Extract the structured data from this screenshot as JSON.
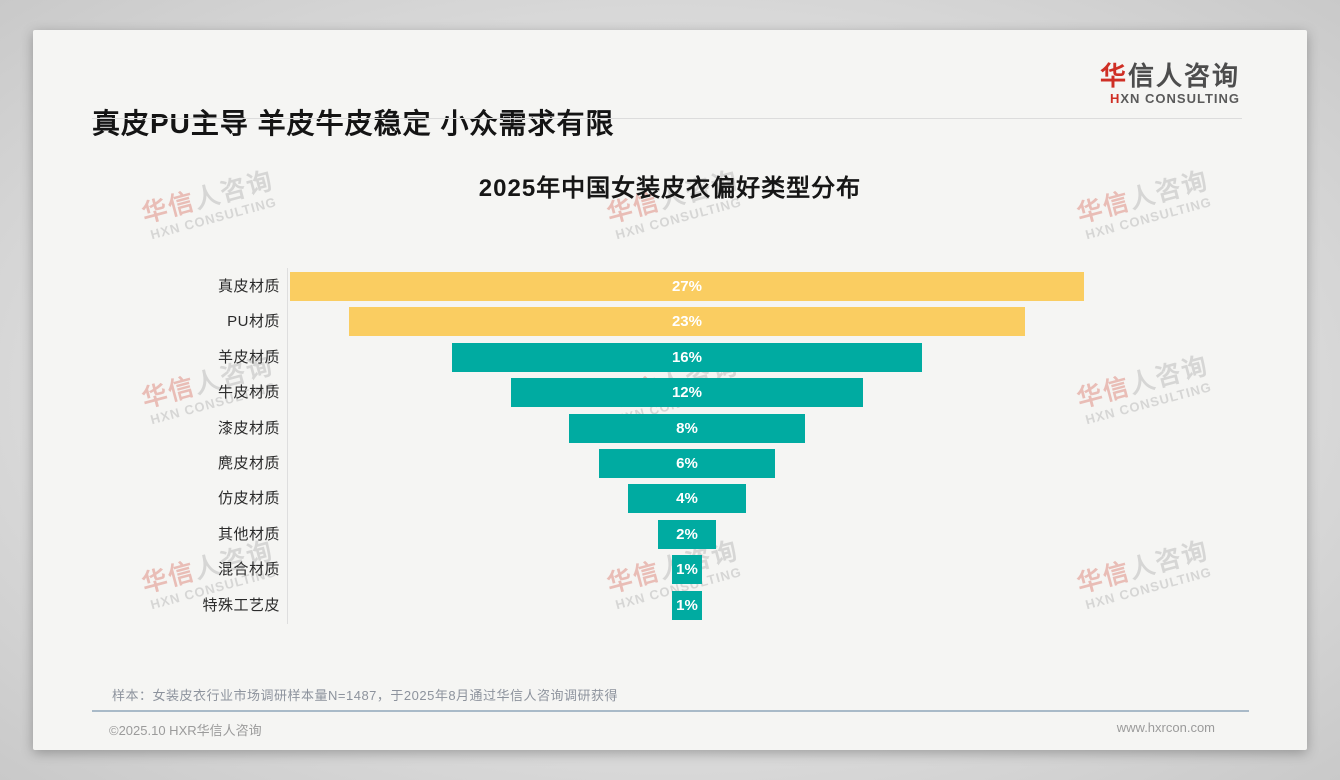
{
  "page": {
    "header": {
      "title": "真皮PU主导 羊皮牛皮稳定 小众需求有限"
    },
    "logo": {
      "cn_red": "华",
      "cn_gray": "信人咨询",
      "sub_red": "H",
      "sub_gray": "XN CONSULTING"
    },
    "watermark": {
      "cn_red": "华信",
      "cn_gray": "人咨询",
      "sub": "HXN CONSULTING"
    },
    "note": "样本：女装皮衣行业市场调研样本量N=1487，于2025年8月通过华信人咨询调研获得",
    "footer": {
      "left": "©2025.10 HXR华信人咨询",
      "right": "www.hxrcon.com"
    }
  },
  "chart_data": {
    "type": "bar",
    "subtype": "centered-funnel-horizontal",
    "title": "2025年中国女装皮衣偏好类型分布",
    "categories": [
      "真皮材质",
      "PU材质",
      "羊皮材质",
      "牛皮材质",
      "漆皮材质",
      "麂皮材质",
      "仿皮材质",
      "其他材质",
      "混合材质",
      "特殊工艺皮"
    ],
    "values": [
      27,
      23,
      16,
      12,
      8,
      6,
      4,
      2,
      1,
      1
    ],
    "unit": "%",
    "value_labels": [
      "27%",
      "23%",
      "16%",
      "12%",
      "8%",
      "6%",
      "4%",
      "2%",
      "1%",
      "1%"
    ],
    "bar_colors": [
      "#FACD61",
      "#FACD61",
      "#00ABA1",
      "#00ABA1",
      "#00ABA1",
      "#00ABA1",
      "#00ABA1",
      "#00ABA1",
      "#00ABA1",
      "#00ABA1"
    ],
    "colors": {
      "gold": "#FACD61",
      "teal": "#00ABA1",
      "value_label": "#FFFFFF"
    },
    "xlim": [
      0,
      27
    ],
    "orientation": "horizontal",
    "alignment": "center",
    "grid": false,
    "legend": false
  }
}
